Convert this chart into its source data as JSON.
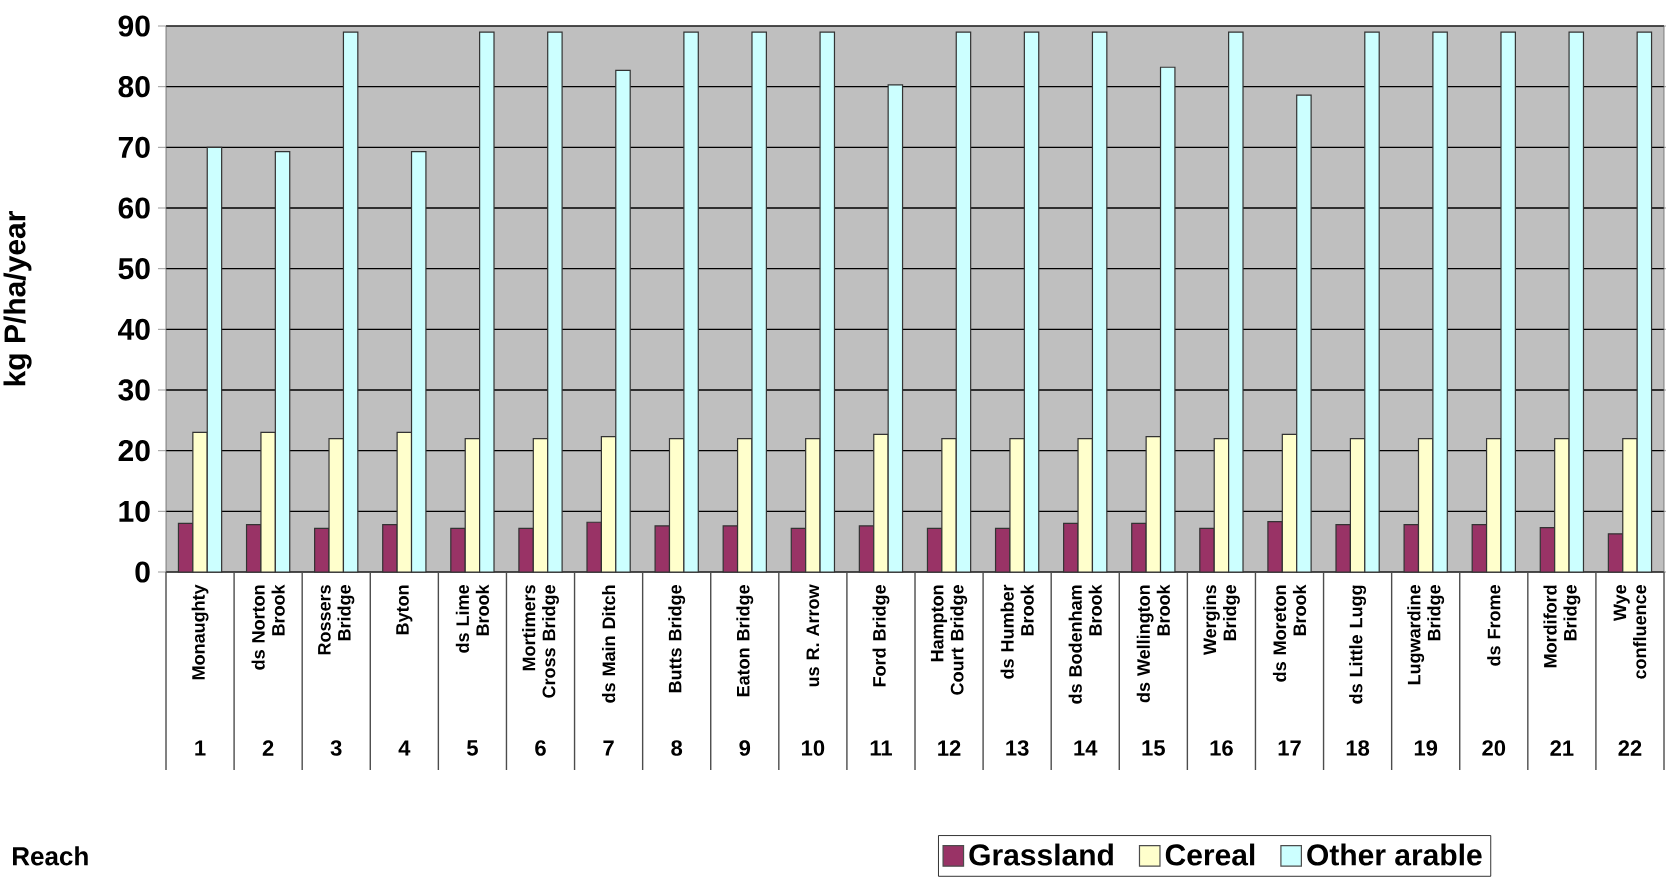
{
  "chart_data": {
    "type": "bar",
    "ylabel": "kg P/ha/year",
    "categories": [
      "Monaughty",
      "ds Norton Brook",
      "Rossers Bridge",
      "Byton",
      "ds Lime Brook",
      "Mortimers Cross Bridge",
      "ds Main Ditch",
      "Butts Bridge",
      "Eaton Bridge",
      "us R. Arrow",
      "Ford Bridge",
      "Hampton Court Bridge",
      "ds Humber Brook",
      "ds Bodenham Brook",
      "ds Wellington Brook",
      "Wergins Bridge",
      "ds Moreton Brook",
      "ds Little Lugg",
      "Lugwardine Bridge",
      "ds Frome",
      "Mordiford Bridge",
      "Wye confluence"
    ],
    "annotations": [
      "Reach",
      "1",
      "2",
      "3",
      "4",
      "5",
      "6",
      "7",
      "8",
      "9",
      "10",
      "11",
      "12",
      "13",
      "14",
      "15",
      "16",
      "17",
      "18",
      "19",
      "20",
      "21",
      "22"
    ],
    "series": [
      {
        "name": "Grassland",
        "color": "#993366",
        "values": [
          8.0,
          7.8,
          7.2,
          7.8,
          7.2,
          7.2,
          8.2,
          7.6,
          7.6,
          7.2,
          7.6,
          7.2,
          7.2,
          8.0,
          8.0,
          7.2,
          8.3,
          7.8,
          7.8,
          7.8,
          7.3,
          6.3
        ]
      },
      {
        "name": "Cereal",
        "color": "#ffffcc",
        "values": [
          23,
          23,
          22,
          23,
          22,
          22,
          22.3,
          22,
          22,
          22,
          22.7,
          22,
          22,
          22,
          22.3,
          22,
          22.7,
          22,
          22,
          22,
          22,
          22
        ]
      },
      {
        "name": "Other arable",
        "color": "#ccffff",
        "values": [
          70,
          69.3,
          89,
          69.3,
          89,
          89,
          82.7,
          89,
          89,
          89,
          80.3,
          89,
          89,
          89,
          83.2,
          89,
          78.6,
          89,
          89,
          89,
          89,
          89
        ]
      }
    ],
    "ylim": [
      0,
      90
    ],
    "yticks": [
      0,
      10,
      20,
      30,
      40,
      50,
      60,
      70,
      80,
      90
    ],
    "grid": "y",
    "legend": "bottom"
  }
}
